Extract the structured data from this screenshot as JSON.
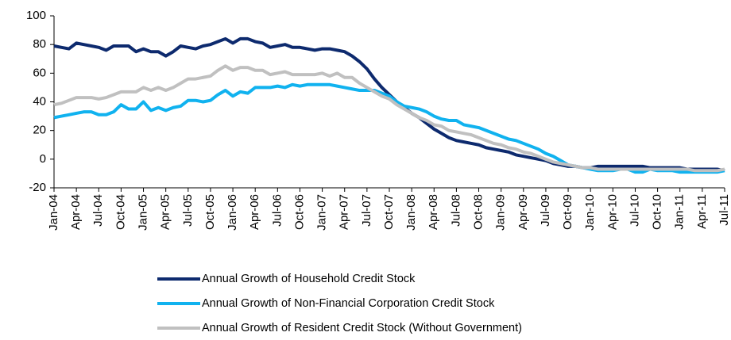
{
  "chart_data": {
    "type": "line",
    "categories": [
      "Jan-04",
      null,
      null,
      "Apr-04",
      null,
      null,
      "Jul-04",
      null,
      null,
      "Oct-04",
      null,
      null,
      "Jan-05",
      null,
      null,
      "Apr-05",
      null,
      null,
      "Jul-05",
      null,
      null,
      "Oct-05",
      null,
      null,
      "Jan-06",
      null,
      null,
      "Apr-06",
      null,
      null,
      "Jul-06",
      null,
      null,
      "Oct-06",
      null,
      null,
      "Jan-07",
      null,
      null,
      "Apr-07",
      null,
      null,
      "Jul-07",
      null,
      null,
      "Oct-07",
      null,
      null,
      "Jan-08",
      null,
      null,
      "Apr-08",
      null,
      null,
      "Jul-08",
      null,
      null,
      "Oct-08",
      null,
      null,
      "Jan-09",
      null,
      null,
      "Apr-09",
      null,
      null,
      "Jul-09",
      null,
      null,
      "Oct-09",
      null,
      null,
      "Jan-10",
      null,
      null,
      "Apr-10",
      null,
      null,
      "Jul-10",
      null,
      null,
      "Oct-10",
      null,
      null,
      "Jan-11",
      null,
      null,
      "Apr-11",
      null,
      null,
      "Jul-11"
    ],
    "series": [
      {
        "name": "Annual Growth of Household Credit Stock",
        "color": "#0d2a6e",
        "values": [
          79,
          78,
          77,
          81,
          80,
          79,
          78,
          76,
          79,
          79,
          79,
          75,
          77,
          75,
          75,
          72,
          75,
          79,
          78,
          77,
          79,
          80,
          82,
          84,
          81,
          84,
          84,
          82,
          81,
          78,
          79,
          80,
          78,
          78,
          77,
          76,
          77,
          77,
          76,
          75,
          72,
          68,
          63,
          56,
          50,
          45,
          40,
          36,
          32,
          29,
          25,
          21,
          18,
          15,
          13,
          12,
          11,
          10,
          8,
          7,
          6,
          5,
          3,
          2,
          1,
          0,
          -1,
          -3,
          -4,
          -5,
          -5,
          -6,
          -6,
          -5,
          -5,
          -5,
          -5,
          -5,
          -5,
          -5,
          -6,
          -6,
          -6,
          -6,
          -6,
          -7,
          -7,
          -7,
          -7,
          -7,
          -8
        ]
      },
      {
        "name": "Annual Growth of Non-Financial Corporation Credit Stock",
        "color": "#10b2ef",
        "values": [
          29,
          30,
          31,
          32,
          33,
          33,
          31,
          31,
          33,
          38,
          35,
          35,
          40,
          34,
          36,
          34,
          36,
          37,
          41,
          41,
          40,
          41,
          45,
          48,
          44,
          47,
          46,
          50,
          50,
          50,
          51,
          50,
          52,
          51,
          52,
          52,
          52,
          52,
          51,
          50,
          49,
          48,
          48,
          48,
          46,
          44,
          40,
          37,
          36,
          35,
          33,
          30,
          28,
          27,
          27,
          24,
          23,
          22,
          20,
          18,
          16,
          14,
          13,
          11,
          9,
          7,
          4,
          2,
          -1,
          -4,
          -5,
          -6,
          -7,
          -8,
          -8,
          -8,
          -7,
          -7,
          -9,
          -9,
          -7,
          -8,
          -8,
          -8,
          -9,
          -9,
          -9,
          -9,
          -9,
          -9,
          -8
        ]
      },
      {
        "name": "Annual Growth of Resident Credit Stock (Without Government)",
        "color": "#c0c0c0",
        "values": [
          38,
          39,
          41,
          43,
          43,
          43,
          42,
          43,
          45,
          47,
          47,
          47,
          50,
          48,
          50,
          48,
          50,
          53,
          56,
          56,
          57,
          58,
          62,
          65,
          62,
          64,
          64,
          62,
          62,
          59,
          60,
          61,
          59,
          59,
          59,
          59,
          60,
          58,
          60,
          57,
          57,
          53,
          50,
          47,
          44,
          42,
          38,
          35,
          32,
          29,
          27,
          24,
          23,
          20,
          19,
          18,
          17,
          15,
          13,
          11,
          10,
          8,
          7,
          5,
          4,
          2,
          0,
          -2,
          -3,
          -4,
          -5,
          -6,
          -6,
          -7,
          -7,
          -7,
          -7,
          -7,
          -7,
          -7,
          -7,
          -7,
          -7,
          -7,
          -7,
          -7,
          -8,
          -8,
          -8,
          -8,
          -7
        ]
      }
    ],
    "ylim": [
      -20,
      100
    ],
    "yticks": [
      -20,
      0,
      20,
      40,
      60,
      80,
      100
    ],
    "legend": "bottom"
  }
}
